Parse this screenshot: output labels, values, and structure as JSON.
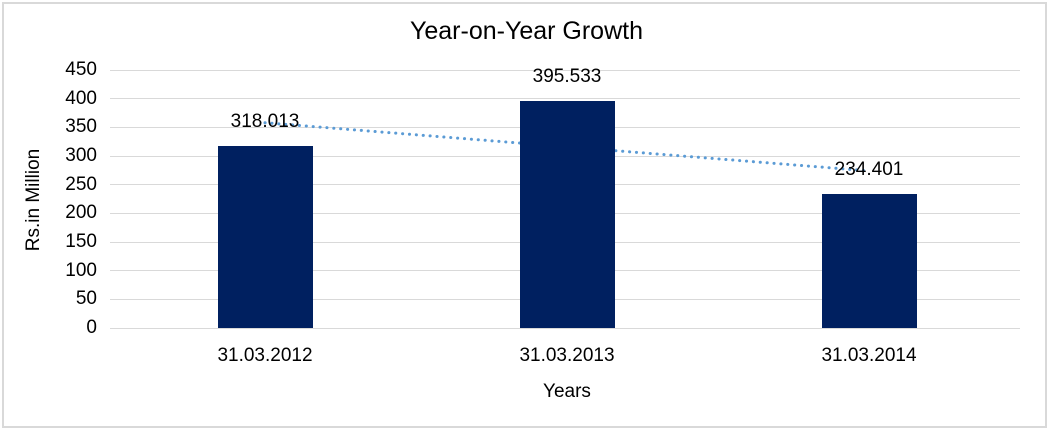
{
  "chart_data": {
    "type": "bar",
    "title": "Year-on-Year Growth",
    "xlabel": "Years",
    "ylabel": "Rs.in Million",
    "categories": [
      "31.03.2012",
      "31.03.2013",
      "31.03.2014"
    ],
    "values": [
      318.013,
      395.533,
      234.401
    ],
    "data_labels": [
      "318.013",
      "395.533",
      "234.401"
    ],
    "ylim": [
      0,
      450
    ],
    "yticks": [
      0,
      50,
      100,
      150,
      200,
      250,
      300,
      350,
      400,
      450
    ],
    "grid": true,
    "legend": "none",
    "bar_color": "#002060",
    "gridline_color": "#D9D9D9",
    "border_color": "#D9D9D9",
    "text_color": "#000000",
    "trendline": {
      "type": "linear",
      "style": "dotted",
      "color": "#5B9BD5",
      "start_value": 358,
      "end_value": 274
    }
  }
}
